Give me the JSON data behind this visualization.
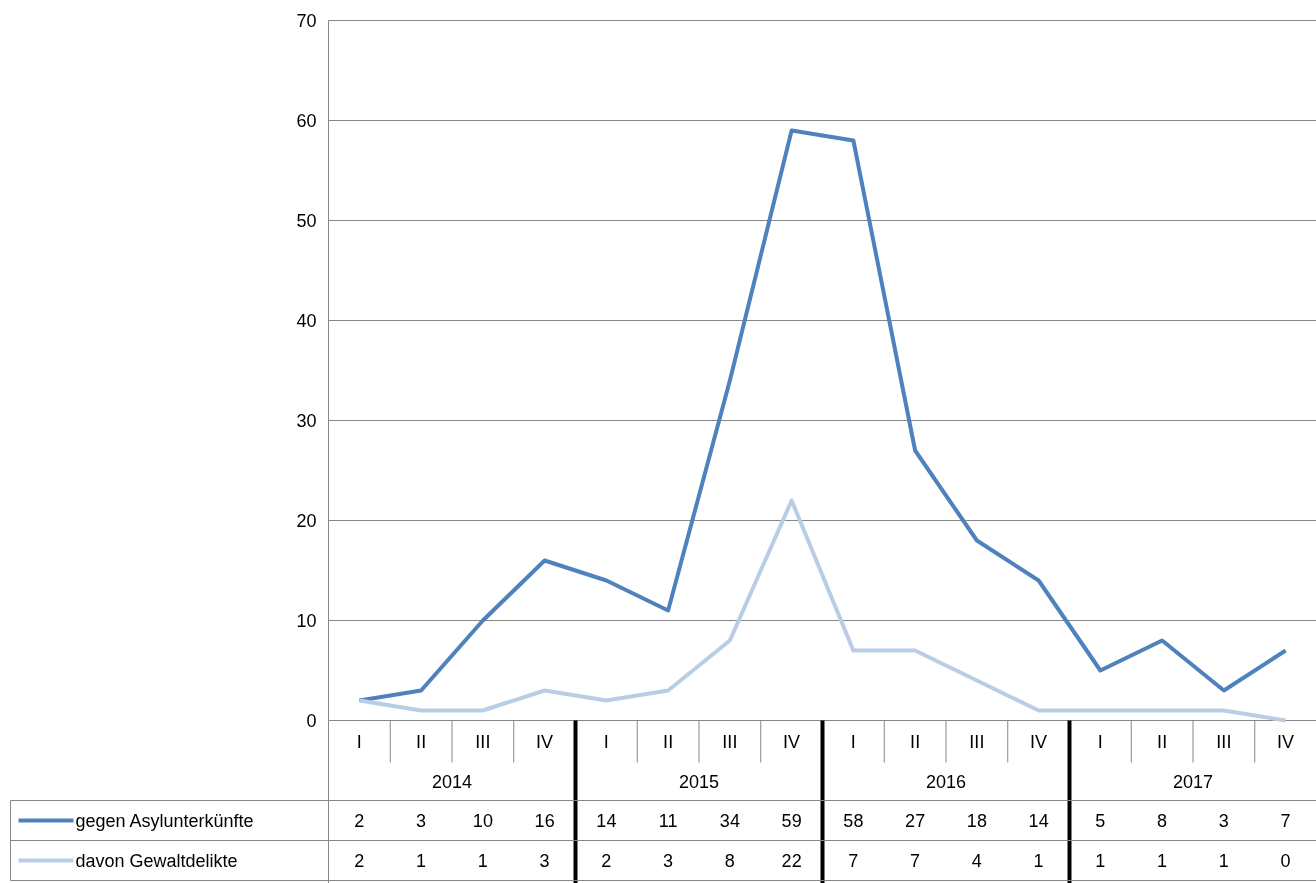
{
  "chart_data": {
    "type": "line",
    "categories": [
      "I",
      "II",
      "III",
      "IV",
      "I",
      "II",
      "III",
      "IV",
      "I",
      "II",
      "III",
      "IV",
      "I",
      "II",
      "III",
      "IV"
    ],
    "series": [
      {
        "name": "gegen Asylunterkünfte",
        "color": "#4f81bd",
        "values": [
          2,
          3,
          10,
          16,
          14,
          11,
          34,
          59,
          58,
          27,
          18,
          14,
          5,
          8,
          3,
          7
        ]
      },
      {
        "name": "davon Gewaltdelikte",
        "color": "#b9cde5",
        "values": [
          2,
          1,
          1,
          3,
          2,
          3,
          8,
          22,
          7,
          7,
          4,
          1,
          1,
          1,
          1,
          0
        ]
      }
    ],
    "annotations": [
      "2014",
      "2015",
      "2016",
      "2017"
    ],
    "ylim": [
      0,
      70
    ],
    "yticks": [
      0,
      10,
      20,
      30,
      40,
      50,
      60,
      70
    ],
    "grid": "y",
    "legend": "bottom",
    "data_labels": true,
    "marker": "none",
    "line_style": "solid"
  }
}
